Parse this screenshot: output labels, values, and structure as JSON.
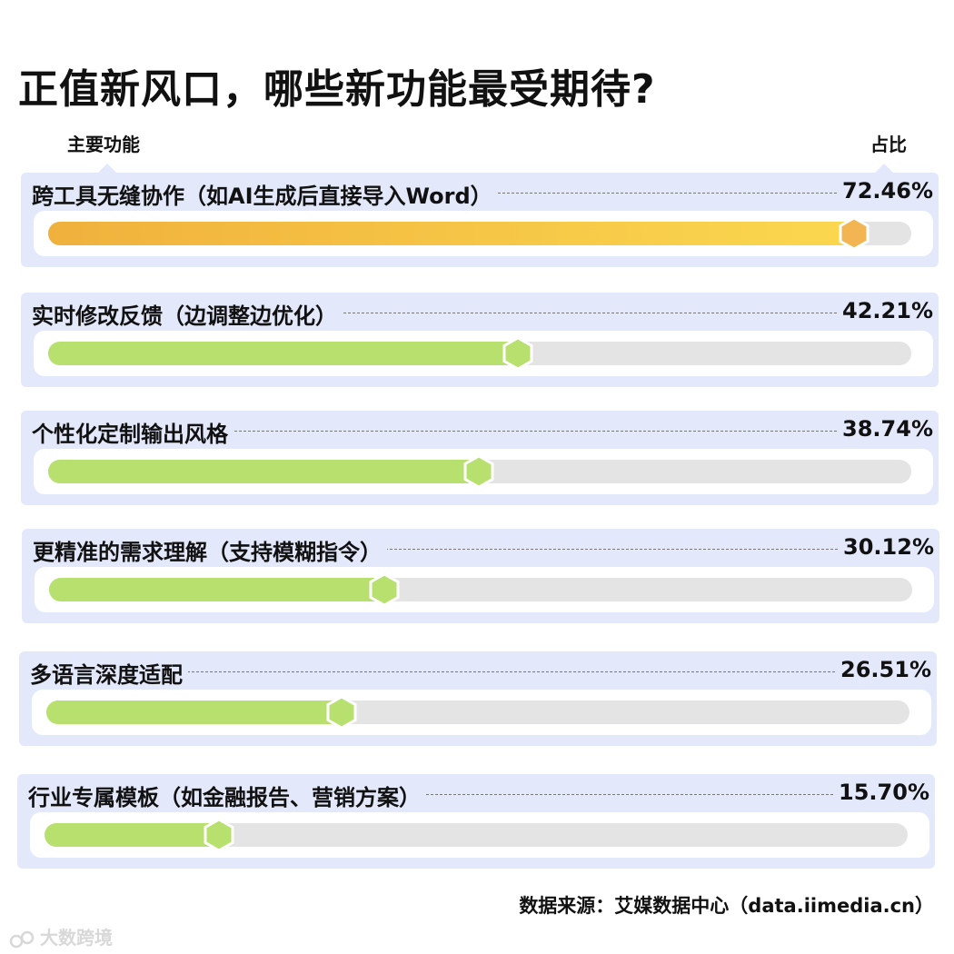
{
  "chart_data": {
    "type": "bar",
    "title": "正值新风口，哪些新功能最受期待?",
    "xlabel": "主要功能",
    "ylabel": "占比",
    "ylim": [
      0,
      78
    ],
    "categories": [
      "跨工具无缝协作（如AI生成后直接导入Word）",
      "实时修改反馈（边调整边优化）",
      "个性化定制输出风格",
      "更精准的需求理解（支持模糊指令）",
      "多语言深度适配",
      "行业专属模板（如金融报告、营销方案）"
    ],
    "values": [
      72.46,
      42.21,
      38.74,
      30.12,
      26.51,
      15.7
    ],
    "value_labels": [
      "72.46%",
      "42.21%",
      "38.74%",
      "30.12%",
      "26.51%",
      "15.70%"
    ],
    "colors": {
      "highlight_start": "#f0b13c",
      "highlight_end": "#fbd84f",
      "highlight_knob": "#f3b552",
      "normal": "#b8e06e",
      "track": "#e4e4e4",
      "panel": "#e3e8fb"
    }
  },
  "footer": {
    "source": "数据来源：艾媒数据中心（data.iimedia.cn）",
    "watermark": "大数跨境",
    "watermark_icon": "logo-icon"
  }
}
